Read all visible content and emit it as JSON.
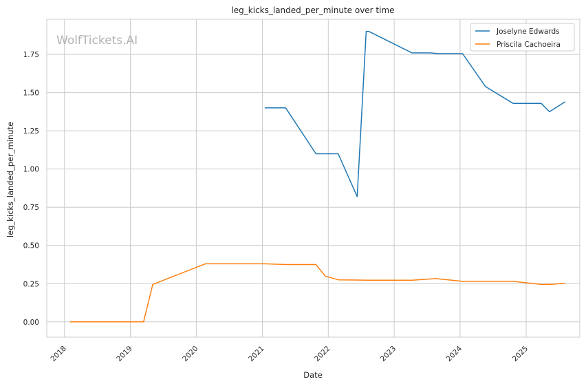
{
  "chart_data": {
    "type": "line",
    "title": "leg_kicks_landed_per_minute over time",
    "xlabel": "Date",
    "ylabel": "leg_kicks_landed_per_minute",
    "watermark": "WolfTickets.AI",
    "x_type": "date",
    "xlim": [
      "2017-09-25",
      "2025-10-25"
    ],
    "ylim": [
      -0.1,
      1.98
    ],
    "x_ticks": [
      "2018",
      "2019",
      "2020",
      "2021",
      "2022",
      "2023",
      "2024",
      "2025"
    ],
    "y_ticks": [
      "0.00",
      "0.25",
      "0.50",
      "0.75",
      "1.00",
      "1.25",
      "1.50",
      "1.75"
    ],
    "y_tick_values": [
      0,
      0.25,
      0.5,
      0.75,
      1.0,
      1.25,
      1.5,
      1.75
    ],
    "grid": true,
    "legend_position": "top-right",
    "series": [
      {
        "name": "Joselyne Edwards",
        "color": "#1f77b4",
        "points": [
          {
            "x": "2021-01-15",
            "y": 1.4
          },
          {
            "x": "2021-05-10",
            "y": 1.4
          },
          {
            "x": "2021-10-25",
            "y": 1.1
          },
          {
            "x": "2022-02-25",
            "y": 1.1
          },
          {
            "x": "2022-06-10",
            "y": 0.82
          },
          {
            "x": "2022-07-30",
            "y": 1.9
          },
          {
            "x": "2022-08-15",
            "y": 1.9
          },
          {
            "x": "2023-04-10",
            "y": 1.76
          },
          {
            "x": "2023-07-20",
            "y": 1.76
          },
          {
            "x": "2023-09-01",
            "y": 1.755
          },
          {
            "x": "2024-01-15",
            "y": 1.755
          },
          {
            "x": "2024-05-20",
            "y": 1.54
          },
          {
            "x": "2024-10-20",
            "y": 1.43
          },
          {
            "x": "2025-03-25",
            "y": 1.43
          },
          {
            "x": "2025-05-10",
            "y": 1.375
          },
          {
            "x": "2025-08-05",
            "y": 1.44
          }
        ]
      },
      {
        "name": "Priscila Cachoeira",
        "color": "#ff7f0e",
        "points": [
          {
            "x": "2018-02-01",
            "y": 0.0
          },
          {
            "x": "2019-03-15",
            "y": 0.0
          },
          {
            "x": "2019-05-05",
            "y": 0.245
          },
          {
            "x": "2020-02-20",
            "y": 0.38
          },
          {
            "x": "2021-01-15",
            "y": 0.38
          },
          {
            "x": "2021-05-10",
            "y": 0.375
          },
          {
            "x": "2021-10-25",
            "y": 0.375
          },
          {
            "x": "2021-12-15",
            "y": 0.3
          },
          {
            "x": "2022-02-25",
            "y": 0.275
          },
          {
            "x": "2022-08-15",
            "y": 0.273
          },
          {
            "x": "2023-04-10",
            "y": 0.273
          },
          {
            "x": "2023-08-20",
            "y": 0.283
          },
          {
            "x": "2024-01-15",
            "y": 0.265
          },
          {
            "x": "2024-10-20",
            "y": 0.265
          },
          {
            "x": "2025-03-25",
            "y": 0.245
          },
          {
            "x": "2025-05-10",
            "y": 0.245
          },
          {
            "x": "2025-08-05",
            "y": 0.252
          }
        ]
      }
    ]
  }
}
